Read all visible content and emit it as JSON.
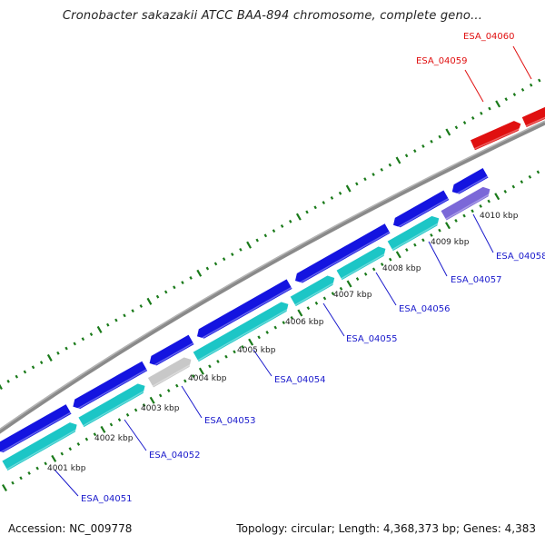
{
  "title": "Cronobacter sakazakii ATCC BAA-894 chromosome, complete geno...",
  "footer": {
    "accession": "Accession: NC_009778",
    "summary": "Topology: circular; Length: 4,368,373 bp; Genes: 4,383"
  },
  "colors": {
    "forward_gene": "#1414e0",
    "reverse_gene": "#1cc6c6",
    "rna_gene": "#e01010",
    "pseudo_gene": "#c8c8c8",
    "selected_gene": "#7b68d8",
    "backbone": "#808080",
    "tick": "#1a7a1a",
    "label_blue": "#1a1acc",
    "label_red": "#e01010"
  },
  "tick_labels": [
    "4001 kbp",
    "4002 kbp",
    "4003 kbp",
    "4004 kbp",
    "4005 kbp",
    "4006 kbp",
    "4007 kbp",
    "4008 kbp",
    "4009 kbp",
    "4010 kbp"
  ],
  "gene_labels": [
    {
      "text": "ESA_04051",
      "color": "blue"
    },
    {
      "text": "ESA_04052",
      "color": "blue"
    },
    {
      "text": "ESA_04053",
      "color": "blue"
    },
    {
      "text": "ESA_04054",
      "color": "blue"
    },
    {
      "text": "ESA_04055",
      "color": "blue"
    },
    {
      "text": "ESA_04056",
      "color": "blue"
    },
    {
      "text": "ESA_04057",
      "color": "blue"
    },
    {
      "text": "ESA_04058",
      "color": "blue"
    },
    {
      "text": "ESA_04059",
      "color": "red"
    },
    {
      "text": "ESA_04060",
      "color": "red"
    }
  ]
}
